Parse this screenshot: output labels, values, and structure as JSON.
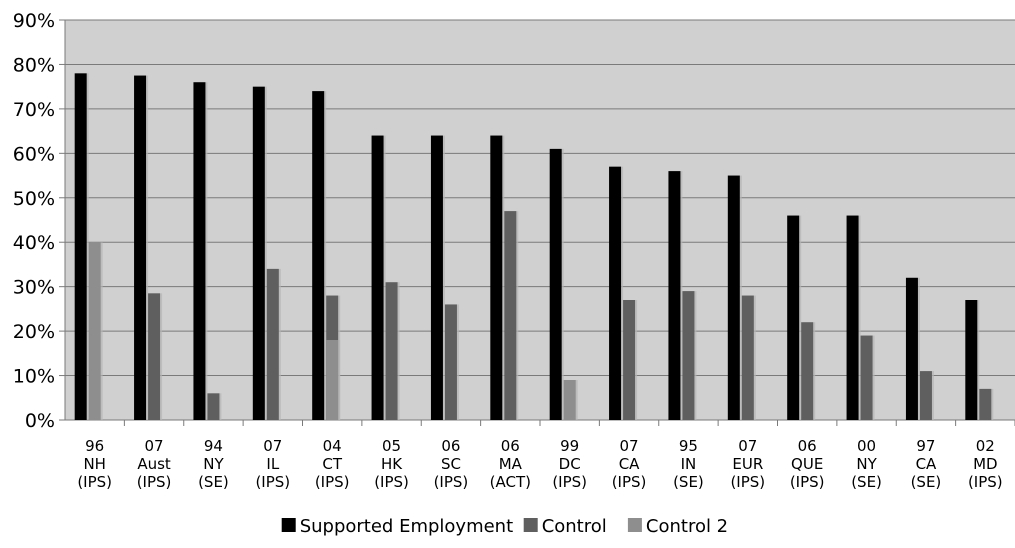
{
  "chart_data": {
    "type": "bar",
    "categories": [
      [
        "96",
        "NH",
        "(IPS)"
      ],
      [
        "07",
        "Aust",
        "(IPS)"
      ],
      [
        "94",
        "NY",
        "(SE)"
      ],
      [
        "07",
        "IL",
        "(IPS)"
      ],
      [
        "04",
        "CT",
        "(IPS)"
      ],
      [
        "05",
        "HK",
        "(IPS)"
      ],
      [
        "06",
        "SC",
        "(IPS)"
      ],
      [
        "06",
        "MA",
        "(ACT)"
      ],
      [
        "99",
        "DC",
        "(IPS)"
      ],
      [
        "07",
        "CA",
        "(IPS)"
      ],
      [
        "95",
        "IN",
        "(SE)"
      ],
      [
        "07",
        "EUR",
        "(IPS)"
      ],
      [
        "06",
        "QUE",
        "(IPS)"
      ],
      [
        "00",
        "NY",
        "(SE)"
      ],
      [
        "97",
        "CA",
        "(SE)"
      ],
      [
        "02",
        "MD",
        "(IPS)"
      ]
    ],
    "series": [
      {
        "name": "Supported Employment",
        "color": "#000000",
        "values": [
          78,
          77.5,
          76,
          75,
          74,
          64,
          64,
          64,
          61,
          57,
          56,
          55,
          46,
          46,
          32,
          27
        ]
      },
      {
        "name": "Control",
        "color": "#5f5f5f",
        "values": [
          null,
          28.5,
          6,
          34,
          28,
          31,
          26,
          47,
          null,
          27,
          29,
          28,
          22,
          19,
          11,
          7
        ]
      },
      {
        "name": "Control 2",
        "color": "#8e8e8e",
        "values": [
          40,
          null,
          null,
          null,
          18,
          null,
          null,
          null,
          9,
          null,
          null,
          null,
          null,
          null,
          null,
          null
        ]
      }
    ],
    "ylim": [
      0,
      90
    ],
    "ytick_step": 10,
    "ytick_format": "percent",
    "grid": true,
    "plot_background": "#d0d0d0",
    "legend_position": "bottom",
    "title": "",
    "xlabel": "",
    "ylabel": ""
  }
}
